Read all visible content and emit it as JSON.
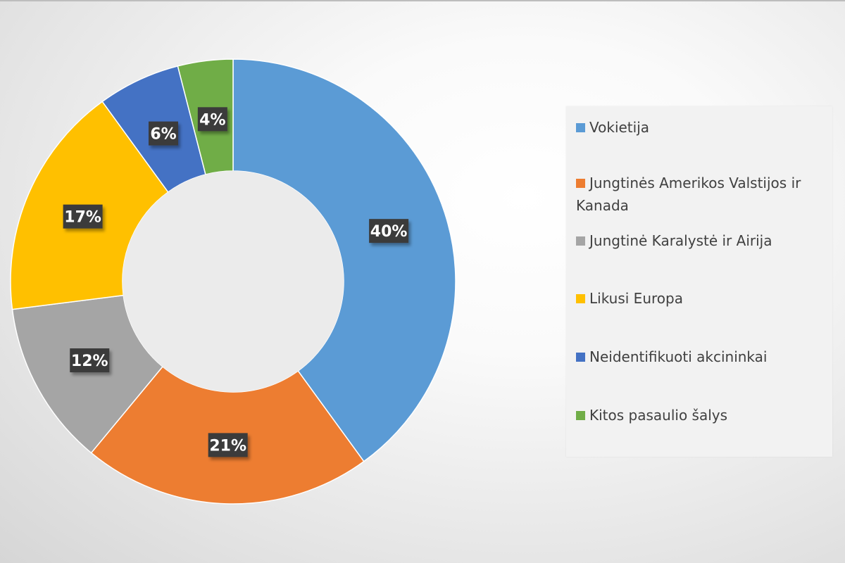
{
  "chart_data": {
    "type": "pie",
    "variant": "doughnut",
    "title": "",
    "legend_position": "right",
    "categories": [
      "Vokietija",
      "Jungtinės Amerikos Valstijos ir Kanada",
      "Jungtinė Karalystė ir Airija",
      "Likusi Europa",
      "Neidentifikuoti akcininkai",
      "Kitos pasaulio šalys"
    ],
    "values": [
      40,
      21,
      12,
      17,
      6,
      4
    ],
    "labels": [
      "40%",
      "21%",
      "12%",
      "17%",
      "6%",
      "4%"
    ],
    "colors": [
      "#5B9BD5",
      "#ED7D31",
      "#A5A5A5",
      "#FFC000",
      "#4472C4",
      "#70AD47"
    ]
  }
}
